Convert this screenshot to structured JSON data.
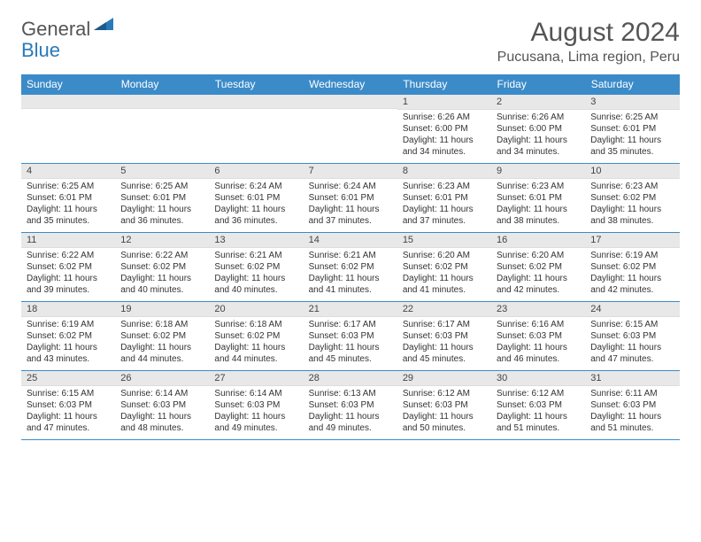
{
  "logo": {
    "part1": "General",
    "part2": "Blue"
  },
  "title": "August 2024",
  "location": "Pucusana, Lima region, Peru",
  "colors": {
    "header_bg": "#3b8bc9",
    "header_text": "#ffffff",
    "daynum_bg": "#e8e8e8",
    "border": "#3b8bc9",
    "title_color": "#555555"
  },
  "day_headers": [
    "Sunday",
    "Monday",
    "Tuesday",
    "Wednesday",
    "Thursday",
    "Friday",
    "Saturday"
  ],
  "weeks": [
    [
      null,
      null,
      null,
      null,
      {
        "n": "1",
        "sr": "6:26 AM",
        "ss": "6:00 PM",
        "dl": "11 hours and 34 minutes."
      },
      {
        "n": "2",
        "sr": "6:26 AM",
        "ss": "6:00 PM",
        "dl": "11 hours and 34 minutes."
      },
      {
        "n": "3",
        "sr": "6:25 AM",
        "ss": "6:01 PM",
        "dl": "11 hours and 35 minutes."
      }
    ],
    [
      {
        "n": "4",
        "sr": "6:25 AM",
        "ss": "6:01 PM",
        "dl": "11 hours and 35 minutes."
      },
      {
        "n": "5",
        "sr": "6:25 AM",
        "ss": "6:01 PM",
        "dl": "11 hours and 36 minutes."
      },
      {
        "n": "6",
        "sr": "6:24 AM",
        "ss": "6:01 PM",
        "dl": "11 hours and 36 minutes."
      },
      {
        "n": "7",
        "sr": "6:24 AM",
        "ss": "6:01 PM",
        "dl": "11 hours and 37 minutes."
      },
      {
        "n": "8",
        "sr": "6:23 AM",
        "ss": "6:01 PM",
        "dl": "11 hours and 37 minutes."
      },
      {
        "n": "9",
        "sr": "6:23 AM",
        "ss": "6:01 PM",
        "dl": "11 hours and 38 minutes."
      },
      {
        "n": "10",
        "sr": "6:23 AM",
        "ss": "6:02 PM",
        "dl": "11 hours and 38 minutes."
      }
    ],
    [
      {
        "n": "11",
        "sr": "6:22 AM",
        "ss": "6:02 PM",
        "dl": "11 hours and 39 minutes."
      },
      {
        "n": "12",
        "sr": "6:22 AM",
        "ss": "6:02 PM",
        "dl": "11 hours and 40 minutes."
      },
      {
        "n": "13",
        "sr": "6:21 AM",
        "ss": "6:02 PM",
        "dl": "11 hours and 40 minutes."
      },
      {
        "n": "14",
        "sr": "6:21 AM",
        "ss": "6:02 PM",
        "dl": "11 hours and 41 minutes."
      },
      {
        "n": "15",
        "sr": "6:20 AM",
        "ss": "6:02 PM",
        "dl": "11 hours and 41 minutes."
      },
      {
        "n": "16",
        "sr": "6:20 AM",
        "ss": "6:02 PM",
        "dl": "11 hours and 42 minutes."
      },
      {
        "n": "17",
        "sr": "6:19 AM",
        "ss": "6:02 PM",
        "dl": "11 hours and 42 minutes."
      }
    ],
    [
      {
        "n": "18",
        "sr": "6:19 AM",
        "ss": "6:02 PM",
        "dl": "11 hours and 43 minutes."
      },
      {
        "n": "19",
        "sr": "6:18 AM",
        "ss": "6:02 PM",
        "dl": "11 hours and 44 minutes."
      },
      {
        "n": "20",
        "sr": "6:18 AM",
        "ss": "6:02 PM",
        "dl": "11 hours and 44 minutes."
      },
      {
        "n": "21",
        "sr": "6:17 AM",
        "ss": "6:03 PM",
        "dl": "11 hours and 45 minutes."
      },
      {
        "n": "22",
        "sr": "6:17 AM",
        "ss": "6:03 PM",
        "dl": "11 hours and 45 minutes."
      },
      {
        "n": "23",
        "sr": "6:16 AM",
        "ss": "6:03 PM",
        "dl": "11 hours and 46 minutes."
      },
      {
        "n": "24",
        "sr": "6:15 AM",
        "ss": "6:03 PM",
        "dl": "11 hours and 47 minutes."
      }
    ],
    [
      {
        "n": "25",
        "sr": "6:15 AM",
        "ss": "6:03 PM",
        "dl": "11 hours and 47 minutes."
      },
      {
        "n": "26",
        "sr": "6:14 AM",
        "ss": "6:03 PM",
        "dl": "11 hours and 48 minutes."
      },
      {
        "n": "27",
        "sr": "6:14 AM",
        "ss": "6:03 PM",
        "dl": "11 hours and 49 minutes."
      },
      {
        "n": "28",
        "sr": "6:13 AM",
        "ss": "6:03 PM",
        "dl": "11 hours and 49 minutes."
      },
      {
        "n": "29",
        "sr": "6:12 AM",
        "ss": "6:03 PM",
        "dl": "11 hours and 50 minutes."
      },
      {
        "n": "30",
        "sr": "6:12 AM",
        "ss": "6:03 PM",
        "dl": "11 hours and 51 minutes."
      },
      {
        "n": "31",
        "sr": "6:11 AM",
        "ss": "6:03 PM",
        "dl": "11 hours and 51 minutes."
      }
    ]
  ],
  "labels": {
    "sunrise": "Sunrise:",
    "sunset": "Sunset:",
    "daylight": "Daylight:"
  }
}
